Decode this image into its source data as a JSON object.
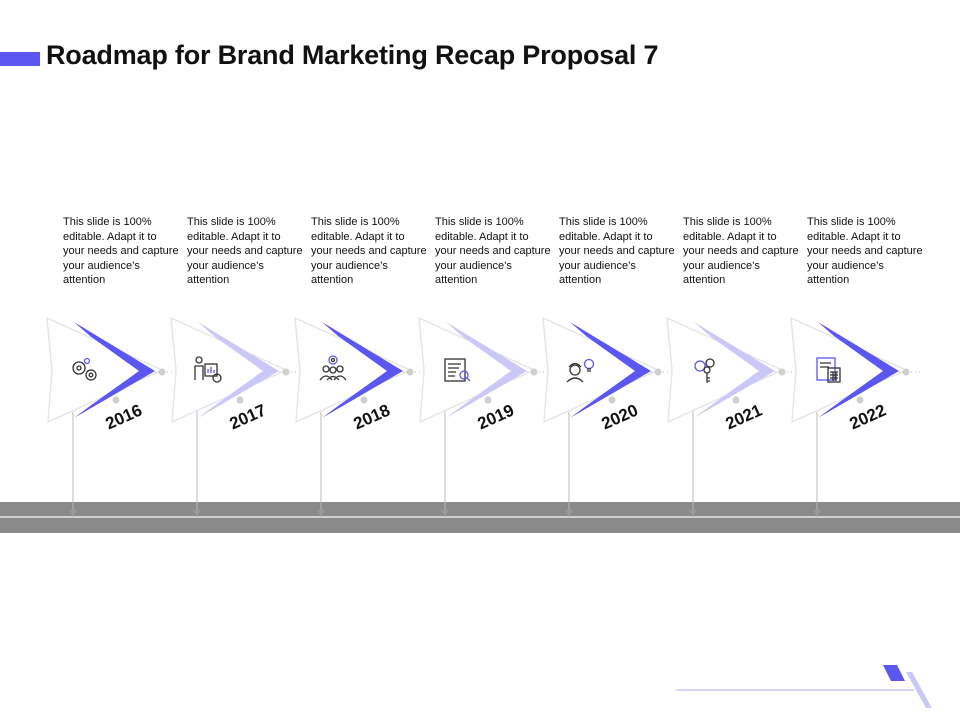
{
  "title": "Roadmap for Brand Marketing Recap Proposal 7",
  "colors": {
    "accent": "#5b57f0",
    "accent_light": "#c9c8f7",
    "road": "#8a8a8a"
  },
  "milestones": [
    {
      "year": "2016",
      "text": "This slide is 100% editable. Adapt it to your needs and capture your audience’s attention",
      "icon": "gears-icon",
      "variant": "dark"
    },
    {
      "year": "2017",
      "text": "This slide is 100% editable. Adapt it to your needs and capture your audience’s attention",
      "icon": "presenter-chart-icon",
      "variant": "light"
    },
    {
      "year": "2018",
      "text": "This slide is 100% editable. Adapt it to your needs and capture your audience’s attention",
      "icon": "team-target-icon",
      "variant": "dark"
    },
    {
      "year": "2019",
      "text": "This slide is 100% editable. Adapt it to your needs and capture your audience’s attention",
      "icon": "document-search-icon",
      "variant": "light"
    },
    {
      "year": "2020",
      "text": "This slide is 100% editable. Adapt it to your needs and capture your audience’s attention",
      "icon": "worker-idea-icon",
      "variant": "dark"
    },
    {
      "year": "2021",
      "text": "This slide is 100% editable. Adapt it to your needs and capture your audience’s attention",
      "icon": "key-gear-icon",
      "variant": "light"
    },
    {
      "year": "2022",
      "text": "This slide is 100% editable. Adapt it to your needs and capture your audience’s attention",
      "icon": "calculator-document-icon",
      "variant": "dark"
    }
  ]
}
